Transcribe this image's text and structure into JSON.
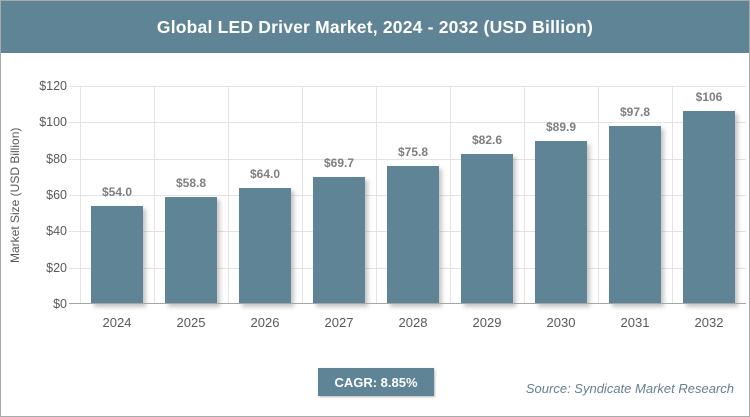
{
  "header": {
    "title": "Global LED Driver Market, 2024 - 2032 (USD Billion)"
  },
  "chart_data": {
    "type": "bar",
    "title": "Global LED Driver Market, 2024 - 2032 (USD Billion)",
    "categories": [
      "2024",
      "2025",
      "2026",
      "2027",
      "2028",
      "2029",
      "2030",
      "2031",
      "2032"
    ],
    "values": [
      54.0,
      58.8,
      64.0,
      69.7,
      75.8,
      82.6,
      89.9,
      97.8,
      106
    ],
    "value_labels": [
      "$54.0",
      "$58.8",
      "$64.0",
      "$69.7",
      "$75.8",
      "$82.6",
      "$89.9",
      "$97.8",
      "$106"
    ],
    "xlabel": "",
    "ylabel": "Market Size (USD Billion)",
    "ylim": [
      0,
      120
    ],
    "ytick_step": 20,
    "ytick_labels": [
      "$0",
      "$20",
      "$40",
      "$60",
      "$80",
      "$100",
      "$120"
    ],
    "grid": true,
    "legend": "none",
    "bar_color": "#5E8495",
    "gridline_color": "#e3e3e3",
    "axis_line_color": "#a6a6a6",
    "tick_label_color": "#595959",
    "value_label_color": "#7f7f7f"
  },
  "footer": {
    "cagr_label": "CAGR: 8.85%",
    "source_label": "Source: Syndicate Market Research"
  },
  "colors": {
    "accent": "#5E8495",
    "title_bar_bg": "#5E8495",
    "title_text": "#ffffff",
    "frame_border": "#a9a9a9"
  }
}
